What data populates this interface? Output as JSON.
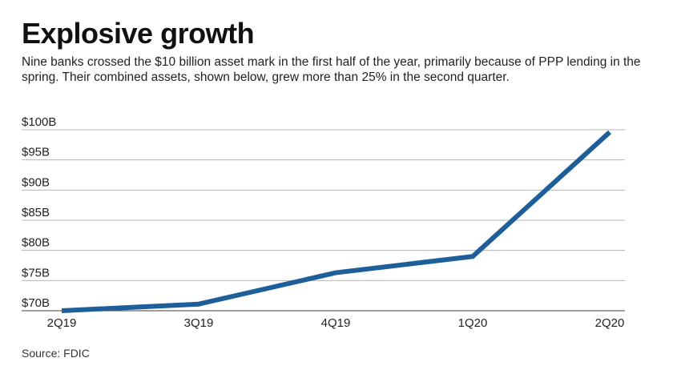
{
  "header": {
    "title": "Explosive growth",
    "subtitle": "Nine banks crossed the $10 billion asset mark in the first half of the year, primarily because of PPP lending in the spring. Their combined assets, shown below, grew more than 25% in the second quarter."
  },
  "footer": {
    "source": "Source: FDIC"
  },
  "chart_data": {
    "type": "line",
    "title": "Explosive growth",
    "xlabel": "",
    "ylabel": "",
    "categories": [
      "2Q19",
      "3Q19",
      "4Q19",
      "1Q20",
      "2Q20"
    ],
    "series": [
      {
        "values": [
          70.0,
          71.1,
          76.3,
          79.0,
          99.6
        ],
        "color": "#1f5f99"
      }
    ],
    "ylim": [
      70,
      100
    ],
    "y_ticks": [
      100,
      95,
      90,
      85,
      80,
      75,
      70
    ],
    "y_tick_labels": [
      "$100B",
      "$95B",
      "$90B",
      "$85B",
      "$80B",
      "$75B",
      "$70B"
    ],
    "grid": true,
    "legend": "none"
  }
}
